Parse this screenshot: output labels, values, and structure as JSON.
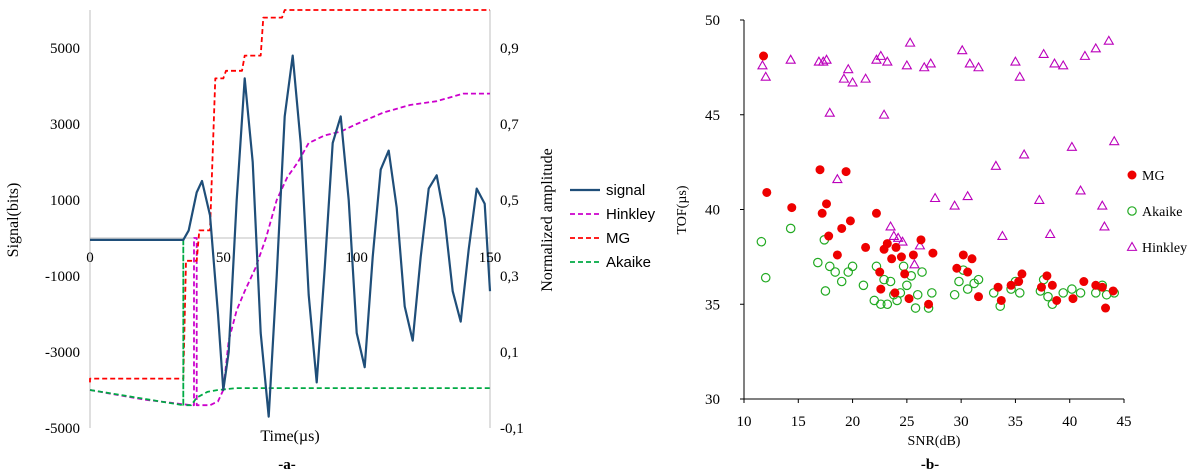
{
  "chart_data": [
    {
      "type": "line",
      "caption": "-a-",
      "xlabel": "Time(µs)",
      "ylabel": "Signal(bits)",
      "y2label": "Normalized amplitude",
      "xlim": [
        0,
        150
      ],
      "ylim": [
        -5000,
        6000
      ],
      "y2lim": [
        -0.1,
        1.0
      ],
      "x_ticks": [
        "0",
        "50",
        "100",
        "150"
      ],
      "y_ticks": [
        "5000",
        "3000",
        "1000",
        "-1000",
        "-3000",
        "-5000"
      ],
      "y2_ticks": [
        "0,9",
        "0,7",
        "0,5",
        "0,3",
        "0,1",
        "-0,1"
      ],
      "grid": false,
      "legend_position": "right",
      "series": [
        {
          "name": "signal",
          "color": "#1f4e79",
          "style": "solid",
          "axis": "left",
          "description_points": [
            [
              0,
              -50
            ],
            [
              35,
              -50
            ],
            [
              37,
              200
            ],
            [
              40,
              1200
            ],
            [
              42,
              1500
            ],
            [
              45,
              600
            ],
            [
              48,
              -2000
            ],
            [
              50,
              -4000
            ],
            [
              52,
              -3000
            ],
            [
              55,
              1000
            ],
            [
              58,
              4200
            ],
            [
              61,
              2000
            ],
            [
              64,
              -2500
            ],
            [
              67,
              -4700
            ],
            [
              70,
              -1000
            ],
            [
              73,
              3200
            ],
            [
              76,
              4800
            ],
            [
              79,
              2500
            ],
            [
              82,
              -1500
            ],
            [
              85,
              -3800
            ],
            [
              88,
              -800
            ],
            [
              91,
              2500
            ],
            [
              94,
              3200
            ],
            [
              97,
              1000
            ],
            [
              100,
              -2500
            ],
            [
              103,
              -3400
            ],
            [
              106,
              -500
            ],
            [
              109,
              1800
            ],
            [
              112,
              2300
            ],
            [
              115,
              800
            ],
            [
              118,
              -1800
            ],
            [
              121,
              -2700
            ],
            [
              124,
              -500
            ],
            [
              127,
              1300
            ],
            [
              130,
              1650
            ],
            [
              133,
              500
            ],
            [
              136,
              -1400
            ],
            [
              139,
              -2200
            ],
            [
              142,
              -300
            ],
            [
              145,
              1300
            ],
            [
              148,
              900
            ],
            [
              150,
              -1400
            ]
          ]
        },
        {
          "name": "Hinkley",
          "color": "#cc00cc",
          "style": "dashed",
          "axis": "right",
          "points": [
            [
              0,
              0.0
            ],
            [
              20,
              -0.025
            ],
            [
              38,
              -0.04
            ],
            [
              39,
              -0.04
            ],
            [
              39,
              0.4
            ],
            [
              40,
              0.4
            ],
            [
              40,
              -0.04
            ],
            [
              45,
              -0.04
            ],
            [
              48,
              -0.03
            ],
            [
              50,
              0.0
            ],
            [
              52,
              0.13
            ],
            [
              55,
              0.21
            ],
            [
              58,
              0.26
            ],
            [
              62,
              0.32
            ],
            [
              66,
              0.4
            ],
            [
              70,
              0.5
            ],
            [
              74,
              0.56
            ],
            [
              78,
              0.6
            ],
            [
              82,
              0.65
            ],
            [
              88,
              0.67
            ],
            [
              94,
              0.68
            ],
            [
              100,
              0.7
            ],
            [
              110,
              0.73
            ],
            [
              120,
              0.75
            ],
            [
              130,
              0.76
            ],
            [
              140,
              0.78
            ],
            [
              150,
              0.78
            ]
          ]
        },
        {
          "name": "MG",
          "color": "#ff0000",
          "style": "dashed",
          "axis": "right",
          "points": [
            [
              0,
              0.02
            ],
            [
              0,
              0.03
            ],
            [
              35,
              0.03
            ],
            [
              35,
              0.03
            ],
            [
              36,
              0.34
            ],
            [
              40,
              0.34
            ],
            [
              41,
              0.42
            ],
            [
              45,
              0.42
            ],
            [
              47,
              0.82
            ],
            [
              50,
              0.82
            ],
            [
              51,
              0.84
            ],
            [
              57,
              0.84
            ],
            [
              58,
              0.88
            ],
            [
              64,
              0.88
            ],
            [
              65,
              0.98
            ],
            [
              72,
              0.98
            ],
            [
              73,
              1.0
            ],
            [
              150,
              1.0
            ]
          ]
        },
        {
          "name": "Akaike",
          "color": "#00aa44",
          "style": "dashed",
          "axis": "right",
          "points": [
            [
              0,
              0.0
            ],
            [
              35,
              -0.04
            ],
            [
              35,
              0.4
            ],
            [
              35,
              -0.04
            ],
            [
              38,
              -0.04
            ],
            [
              40,
              -0.02
            ],
            [
              44,
              -0.005
            ],
            [
              48,
              0.0
            ],
            [
              55,
              0.005
            ],
            [
              70,
              0.005
            ],
            [
              150,
              0.005
            ]
          ]
        }
      ]
    },
    {
      "type": "scatter",
      "caption": "-b-",
      "xlabel": "SNR(dB)",
      "ylabel": "TOF(µs)",
      "xlim": [
        10,
        45
      ],
      "ylim": [
        30,
        50
      ],
      "x_ticks": [
        "10",
        "15",
        "20",
        "25",
        "30",
        "35",
        "40",
        "45"
      ],
      "y_ticks": [
        "50",
        "45",
        "40",
        "35",
        "30"
      ],
      "grid": false,
      "legend_position": "right",
      "series": [
        {
          "name": "MG",
          "marker": "filled-circle",
          "color": "#ee0000",
          "points": [
            [
              11.8,
              48.1
            ],
            [
              12.1,
              40.9
            ],
            [
              14.4,
              40.1
            ],
            [
              17.0,
              42.1
            ],
            [
              17.2,
              39.8
            ],
            [
              17.6,
              40.3
            ],
            [
              17.8,
              38.6
            ],
            [
              18.6,
              37.6
            ],
            [
              19.0,
              39.0
            ],
            [
              19.4,
              42.0
            ],
            [
              19.8,
              39.4
            ],
            [
              21.2,
              38.0
            ],
            [
              22.2,
              39.8
            ],
            [
              22.5,
              36.7
            ],
            [
              22.9,
              37.9
            ],
            [
              23.2,
              38.2
            ],
            [
              23.6,
              37.4
            ],
            [
              24.0,
              38.0
            ],
            [
              24.5,
              37.5
            ],
            [
              24.8,
              36.6
            ],
            [
              25.2,
              35.3
            ],
            [
              25.6,
              37.6
            ],
            [
              26.3,
              38.4
            ],
            [
              27.0,
              35.0
            ],
            [
              27.4,
              37.7
            ],
            [
              22.6,
              35.8
            ],
            [
              23.9,
              35.6
            ],
            [
              29.6,
              36.9
            ],
            [
              30.2,
              37.6
            ],
            [
              30.6,
              36.7
            ],
            [
              31.0,
              37.4
            ],
            [
              31.6,
              35.4
            ],
            [
              33.4,
              35.9
            ],
            [
              33.7,
              35.2
            ],
            [
              34.6,
              36.0
            ],
            [
              35.3,
              36.2
            ],
            [
              35.6,
              36.6
            ],
            [
              37.4,
              35.9
            ],
            [
              37.9,
              36.5
            ],
            [
              38.4,
              36.0
            ],
            [
              38.8,
              35.2
            ],
            [
              40.3,
              35.3
            ],
            [
              41.3,
              36.2
            ],
            [
              42.4,
              36.0
            ],
            [
              43.0,
              35.9
            ],
            [
              43.3,
              34.8
            ],
            [
              44.0,
              35.7
            ]
          ]
        },
        {
          "name": "Akaike",
          "marker": "open-circle",
          "color": "#22aa22",
          "points": [
            [
              11.6,
              38.3
            ],
            [
              12.0,
              36.4
            ],
            [
              14.3,
              39.0
            ],
            [
              16.8,
              37.2
            ],
            [
              17.4,
              38.4
            ],
            [
              17.5,
              35.7
            ],
            [
              17.9,
              37.0
            ],
            [
              18.4,
              36.7
            ],
            [
              19.0,
              36.2
            ],
            [
              19.6,
              36.7
            ],
            [
              20.0,
              37.0
            ],
            [
              21.0,
              36.0
            ],
            [
              22.0,
              35.2
            ],
            [
              22.2,
              37.0
            ],
            [
              22.6,
              35.0
            ],
            [
              22.9,
              36.3
            ],
            [
              23.2,
              35.0
            ],
            [
              23.5,
              36.2
            ],
            [
              23.8,
              35.5
            ],
            [
              24.1,
              35.2
            ],
            [
              24.4,
              35.6
            ],
            [
              24.7,
              37.0
            ],
            [
              25.0,
              36.0
            ],
            [
              25.4,
              36.5
            ],
            [
              25.8,
              34.8
            ],
            [
              26.0,
              35.5
            ],
            [
              26.4,
              36.7
            ],
            [
              27.0,
              34.8
            ],
            [
              27.3,
              35.6
            ],
            [
              29.4,
              35.5
            ],
            [
              29.8,
              36.2
            ],
            [
              30.2,
              36.8
            ],
            [
              30.6,
              35.8
            ],
            [
              31.2,
              36.1
            ],
            [
              31.6,
              36.3
            ],
            [
              33.0,
              35.6
            ],
            [
              33.6,
              34.9
            ],
            [
              34.6,
              35.8
            ],
            [
              35.0,
              36.2
            ],
            [
              35.4,
              35.6
            ],
            [
              37.3,
              35.7
            ],
            [
              37.6,
              36.3
            ],
            [
              38.0,
              35.4
            ],
            [
              38.4,
              35.0
            ],
            [
              39.4,
              35.6
            ],
            [
              40.2,
              35.8
            ],
            [
              41.0,
              35.6
            ],
            [
              42.4,
              35.6
            ],
            [
              43.0,
              36.0
            ],
            [
              43.4,
              35.5
            ],
            [
              44.1,
              35.6
            ]
          ]
        },
        {
          "name": "Hinkley",
          "marker": "open-triangle",
          "color": "#bb00bb",
          "points": [
            [
              11.7,
              47.6
            ],
            [
              12.0,
              47.0
            ],
            [
              14.3,
              47.9
            ],
            [
              16.9,
              47.8
            ],
            [
              17.3,
              47.8
            ],
            [
              17.6,
              47.9
            ],
            [
              17.9,
              45.1
            ],
            [
              18.6,
              41.6
            ],
            [
              19.2,
              46.9
            ],
            [
              19.6,
              47.4
            ],
            [
              20.0,
              46.7
            ],
            [
              21.2,
              46.9
            ],
            [
              22.2,
              47.9
            ],
            [
              22.6,
              48.1
            ],
            [
              22.9,
              45.0
            ],
            [
              23.2,
              47.8
            ],
            [
              23.5,
              39.1
            ],
            [
              23.8,
              38.6
            ],
            [
              24.2,
              38.5
            ],
            [
              24.6,
              38.3
            ],
            [
              25.0,
              47.6
            ],
            [
              25.3,
              48.8
            ],
            [
              25.7,
              37.1
            ],
            [
              26.2,
              38.1
            ],
            [
              26.6,
              47.5
            ],
            [
              27.2,
              47.7
            ],
            [
              27.6,
              40.6
            ],
            [
              29.4,
              40.2
            ],
            [
              30.1,
              48.4
            ],
            [
              30.6,
              40.7
            ],
            [
              30.8,
              47.7
            ],
            [
              31.6,
              47.5
            ],
            [
              33.2,
              42.3
            ],
            [
              33.8,
              38.6
            ],
            [
              35.0,
              47.8
            ],
            [
              35.4,
              47.0
            ],
            [
              35.8,
              42.9
            ],
            [
              37.2,
              40.5
            ],
            [
              37.6,
              48.2
            ],
            [
              38.2,
              38.7
            ],
            [
              38.6,
              47.7
            ],
            [
              39.4,
              47.6
            ],
            [
              40.2,
              43.3
            ],
            [
              41.0,
              41.0
            ],
            [
              41.4,
              48.1
            ],
            [
              42.4,
              48.5
            ],
            [
              43.0,
              40.2
            ],
            [
              43.2,
              39.1
            ],
            [
              43.6,
              48.9
            ],
            [
              44.1,
              43.6
            ]
          ]
        }
      ]
    }
  ]
}
